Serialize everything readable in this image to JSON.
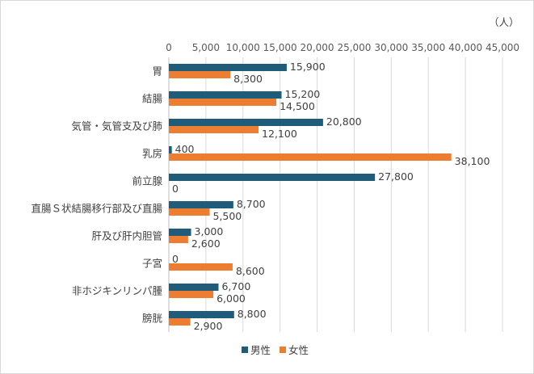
{
  "chart_data": {
    "type": "bar",
    "orientation": "horizontal",
    "unit": "（人）",
    "categories": [
      "胃",
      "結腸",
      "気管・気管支及び肺",
      "乳房",
      "前立腺",
      "直腸Ｓ状結腸移行部及び直腸",
      "肝及び肝内胆管",
      "子宮",
      "非ホジキンリンパ腫",
      "膀胱"
    ],
    "series": [
      {
        "name": "男性",
        "color": "#1f5c7a",
        "values": [
          15900,
          15200,
          20800,
          400,
          27800,
          8700,
          3000,
          0,
          6700,
          8800
        ],
        "labels": [
          "15,900",
          "15,200",
          "20,800",
          "400",
          "27,800",
          "8,700",
          "3,000",
          "0",
          "6,700",
          "8,800"
        ]
      },
      {
        "name": "女性",
        "color": "#ed7d31",
        "values": [
          8300,
          14500,
          12100,
          38100,
          0,
          5500,
          2600,
          8600,
          6000,
          2900
        ],
        "labels": [
          "8,300",
          "14,500",
          "12,100",
          "38,100",
          "0",
          "5,500",
          "2,600",
          "8,600",
          "6,000",
          "2,900"
        ]
      }
    ],
    "xlim": [
      0,
      45000
    ],
    "xticks": [
      0,
      5000,
      10000,
      15000,
      20000,
      25000,
      30000,
      35000,
      40000,
      45000
    ],
    "xtick_labels": [
      "0",
      "5,000",
      "10,000",
      "15,000",
      "20,000",
      "25,000",
      "30,000",
      "35,000",
      "40,000",
      "45,000"
    ],
    "xaxis_position": "top",
    "grid": true,
    "legend_position": "bottom"
  }
}
